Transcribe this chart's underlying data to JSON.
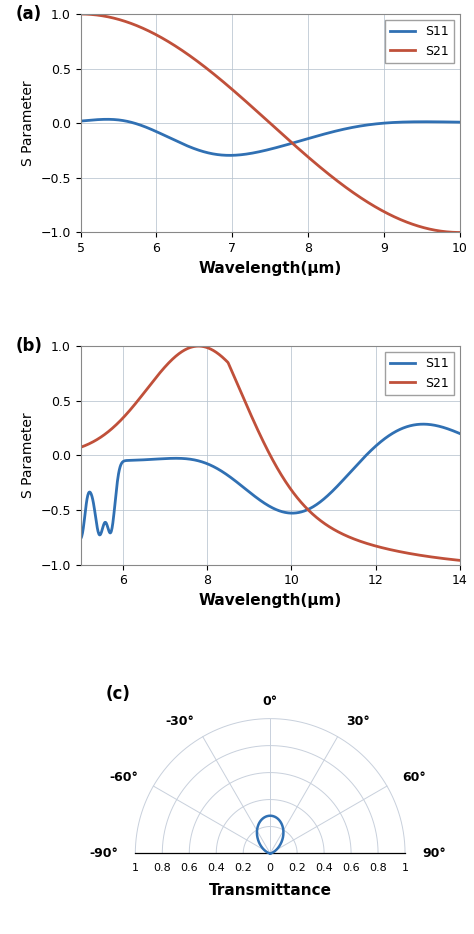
{
  "panel_a": {
    "label": "(a)",
    "xlim": [
      5,
      10
    ],
    "ylim": [
      -1,
      1
    ],
    "xticks": [
      5,
      6,
      7,
      8,
      9,
      10
    ],
    "yticks": [
      -1,
      -0.5,
      0,
      0.5,
      1
    ],
    "xlabel": "Wavelength(μm)",
    "ylabel": "S Parameter",
    "s11_color": "#3070b3",
    "s21_color": "#c0503a",
    "line_width": 2.0
  },
  "panel_b": {
    "label": "(b)",
    "xlim": [
      5,
      14
    ],
    "ylim": [
      -1,
      1
    ],
    "xticks": [
      6,
      8,
      10,
      12,
      14
    ],
    "yticks": [
      -1,
      -0.5,
      0,
      0.5,
      1
    ],
    "xlabel": "Wavelength(μm)",
    "ylabel": "S Parameter",
    "s11_color": "#3070b3",
    "s21_color": "#c0503a",
    "line_width": 2.0
  },
  "panel_c": {
    "label": "(c)",
    "xlabel": "Transmittance",
    "line_color": "#3070b3",
    "line_width": 1.8,
    "grid_color": "#c8d0dc",
    "rtick_labels": [
      "0.2",
      "0.4",
      "0.6",
      "0.8",
      "1"
    ]
  },
  "background_color": "#ffffff",
  "grid_color": "#b8c4d0",
  "grid_alpha": 0.8
}
